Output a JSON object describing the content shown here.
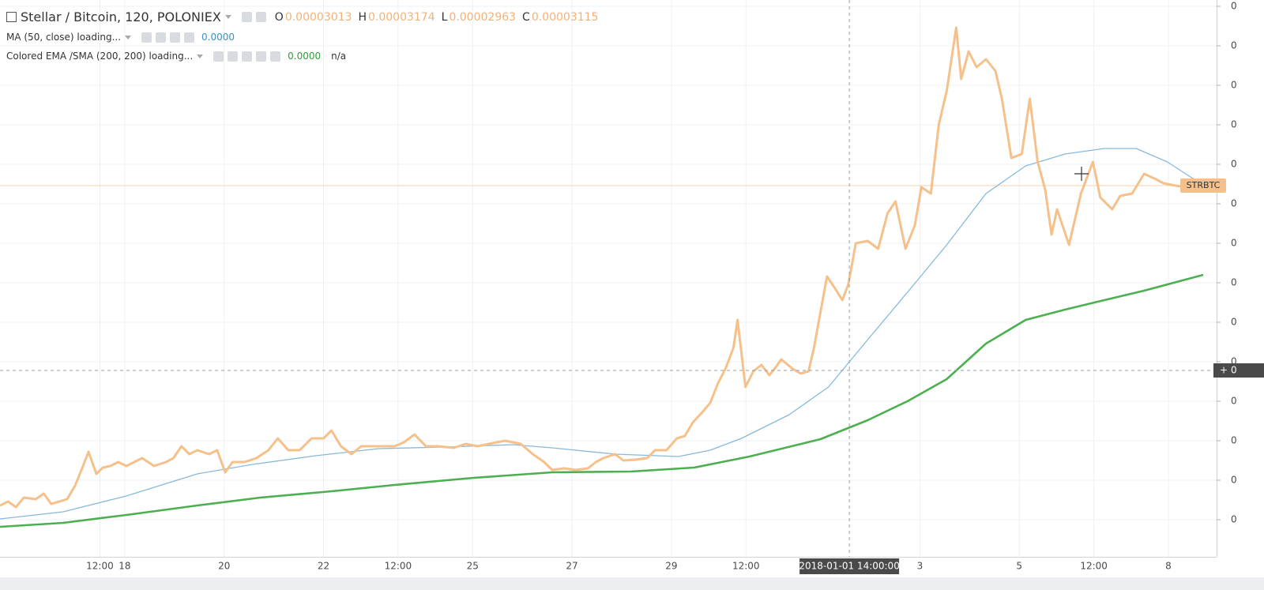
{
  "header": {
    "symbol": "Stellar / Bitcoin, 120, POLONIEX",
    "ohlc": [
      {
        "key": "O",
        "value": "0.00003013"
      },
      {
        "key": "H",
        "value": "0.00003174"
      },
      {
        "key": "L",
        "value": "0.00002963"
      },
      {
        "key": "C",
        "value": "0.00003115"
      }
    ]
  },
  "indicators": [
    {
      "label": "MA (50, close) loading...",
      "value": "0.0000"
    },
    {
      "label": "Colored EMA /SMA (200, 200) loading...",
      "value": "0.0000",
      "extra": "n/a"
    }
  ],
  "chart_data": {
    "type": "line",
    "xlim": [
      15.49,
      39.97
    ],
    "xticks": [
      {
        "value": 17.5,
        "label": "12:00"
      },
      18,
      20,
      22,
      {
        "value": 23.5,
        "label": "12:00"
      },
      25,
      27,
      29,
      {
        "value": 30.5,
        "label": "12:00"
      },
      {
        "value": 34,
        "label": "3"
      },
      {
        "value": 36,
        "label": "5"
      },
      {
        "value": 37.5,
        "label": "12:00"
      },
      {
        "value": 39,
        "label": "8"
      }
    ],
    "ylim": [
      7.65e-06,
      4.29e-05
    ],
    "yticks": [
      {
        "value": 1e-05,
        "label": "0"
      },
      {
        "value": 1.25e-05,
        "label": "0"
      },
      {
        "value": 1.5e-05,
        "label": "0"
      },
      {
        "value": 1.75e-05,
        "label": "0"
      },
      {
        "value": 2e-05,
        "label": "0"
      },
      {
        "value": 2.25e-05,
        "label": "0"
      },
      {
        "value": 2.5e-05,
        "label": "0"
      },
      {
        "value": 2.75e-05,
        "label": "0"
      },
      {
        "value": 3e-05,
        "label": "0"
      },
      {
        "value": 3.25e-05,
        "label": "0"
      },
      {
        "value": 3.5e-05,
        "label": "0"
      },
      {
        "value": 3.75e-05,
        "label": "0"
      },
      {
        "value": 4e-05,
        "label": "0"
      },
      {
        "value": 4.25e-05,
        "label": "0"
      }
    ],
    "grid": true,
    "crosshair": {
      "x": 32.58,
      "x_label": "2018-01-01 14:00:00",
      "y": 1.945e-05,
      "y_label": "0"
    },
    "series": [
      {
        "name": "STRBTC",
        "color": "#f5c08a",
        "width": 3,
        "x": [
          15.49,
          15.65,
          15.81,
          15.97,
          16.21,
          16.37,
          16.52,
          16.68,
          16.84,
          17.0,
          17.16,
          17.27,
          17.43,
          17.56,
          17.71,
          17.87,
          18.03,
          18.19,
          18.35,
          18.59,
          18.83,
          18.98,
          19.14,
          19.3,
          19.46,
          19.7,
          19.86,
          20.02,
          20.17,
          20.41,
          20.65,
          20.89,
          21.08,
          21.29,
          21.52,
          21.76,
          22.0,
          22.16,
          22.35,
          22.56,
          22.76,
          22.95,
          23.19,
          23.43,
          23.62,
          23.83,
          24.06,
          24.3,
          24.62,
          24.86,
          25.1,
          25.33,
          25.65,
          25.97,
          26.21,
          26.44,
          26.6,
          26.84,
          27.08,
          27.32,
          27.48,
          27.63,
          27.87,
          28.03,
          28.27,
          28.51,
          28.67,
          28.9,
          29.11,
          29.27,
          29.43,
          29.62,
          29.78,
          29.94,
          30.1,
          30.25,
          30.33,
          30.49,
          30.65,
          30.81,
          30.97,
          31.1,
          31.21,
          31.44,
          31.6,
          31.76,
          31.87,
          32.0,
          32.13,
          32.29,
          32.44,
          32.56,
          32.71,
          32.95,
          33.16,
          33.35,
          33.51,
          33.71,
          33.9,
          34.03,
          34.22,
          34.38,
          34.54,
          34.73,
          34.83,
          34.98,
          35.14,
          35.33,
          35.52,
          35.65,
          35.84,
          36.05,
          36.21,
          36.37,
          36.52,
          36.65,
          36.76,
          37.0,
          37.24,
          37.48,
          37.63,
          37.87,
          38.03,
          38.27,
          38.51,
          38.75,
          38.9,
          39.14,
          39.38,
          39.54
        ],
        "values": [
          1.09e-05,
          1.115e-05,
          1.08e-05,
          1.14e-05,
          1.13e-05,
          1.165e-05,
          1.1e-05,
          1.115e-05,
          1.13e-05,
          1.215e-05,
          1.34e-05,
          1.43e-05,
          1.29e-05,
          1.33e-05,
          1.34e-05,
          1.365e-05,
          1.34e-05,
          1.365e-05,
          1.39e-05,
          1.34e-05,
          1.365e-05,
          1.39e-05,
          1.465e-05,
          1.415e-05,
          1.44e-05,
          1.415e-05,
          1.44e-05,
          1.3e-05,
          1.365e-05,
          1.365e-05,
          1.39e-05,
          1.44e-05,
          1.515e-05,
          1.44e-05,
          1.44e-05,
          1.515e-05,
          1.515e-05,
          1.565e-05,
          1.465e-05,
          1.415e-05,
          1.465e-05,
          1.465e-05,
          1.465e-05,
          1.465e-05,
          1.49e-05,
          1.54e-05,
          1.465e-05,
          1.465e-05,
          1.455e-05,
          1.48e-05,
          1.465e-05,
          1.48e-05,
          1.5e-05,
          1.48e-05,
          1.415e-05,
          1.365e-05,
          1.315e-05,
          1.325e-05,
          1.315e-05,
          1.325e-05,
          1.365e-05,
          1.39e-05,
          1.415e-05,
          1.375e-05,
          1.38e-05,
          1.39e-05,
          1.44e-05,
          1.44e-05,
          1.515e-05,
          1.53e-05,
          1.615e-05,
          1.68e-05,
          1.74e-05,
          1.865e-05,
          1.965e-05,
          2.09e-05,
          2.265e-05,
          1.84e-05,
          1.94e-05,
          1.98e-05,
          1.915e-05,
          1.965e-05,
          2.015e-05,
          1.955e-05,
          1.925e-05,
          1.94e-05,
          2.09e-05,
          2.315e-05,
          2.54e-05,
          2.465e-05,
          2.39e-05,
          2.49e-05,
          2.75e-05,
          2.765e-05,
          2.715e-05,
          2.94e-05,
          3.015e-05,
          2.715e-05,
          2.865e-05,
          3.105e-05,
          3.065e-05,
          3.5e-05,
          3.715e-05,
          4.115e-05,
          3.79e-05,
          3.965e-05,
          3.865e-05,
          3.915e-05,
          3.84e-05,
          3.665e-05,
          3.29e-05,
          3.315e-05,
          3.665e-05,
          3.265e-05,
          3.09e-05,
          2.805e-05,
          2.965e-05,
          2.74e-05,
          3.065e-05,
          3.265e-05,
          3.04e-05,
          2.965e-05,
          3.05e-05,
          3.065e-05,
          3.19e-05,
          3.155e-05,
          3.13e-05,
          3.115e-05,
          3.105e-05,
          3.115e-05
        ]
      },
      {
        "name": "MA (50, close) loading...",
        "color": "#86b9dc",
        "width": 1.3,
        "x": [
          15.49,
          16.76,
          18.03,
          19.46,
          20.57,
          21.84,
          23.11,
          24.44,
          25.81,
          26.6,
          27.87,
          29.14,
          29.78,
          30.41,
          31.37,
          32.16,
          32.95,
          33.75,
          34.54,
          35.33,
          36.13,
          36.92,
          37.71,
          38.35,
          38.98,
          39.54
        ],
        "values": [
          1.005e-05,
          1.05e-05,
          1.15e-05,
          1.29e-05,
          1.35e-05,
          1.405e-05,
          1.45e-05,
          1.46e-05,
          1.475e-05,
          1.455e-05,
          1.415e-05,
          1.4e-05,
          1.44e-05,
          1.515e-05,
          1.665e-05,
          1.84e-05,
          2.14e-05,
          2.44e-05,
          2.74e-05,
          3.065e-05,
          3.24e-05,
          3.315e-05,
          3.35e-05,
          3.35e-05,
          3.265e-05,
          3.15e-05
        ]
      },
      {
        "name": "Colored EMA /SMA (200, 200) loading...",
        "color": "#4caf50",
        "width": 2.6,
        "x": [
          15.49,
          16.76,
          18.03,
          19.46,
          20.73,
          22.16,
          23.43,
          25.02,
          26.6,
          28.19,
          29.46,
          30.57,
          32.0,
          32.95,
          33.75,
          34.54,
          35.33,
          36.13,
          36.92,
          37.71,
          38.51,
          39.7
        ],
        "values": [
          9.55e-06,
          9.8e-06,
          1.03e-05,
          1.09e-05,
          1.14e-05,
          1.18e-05,
          1.22e-05,
          1.265e-05,
          1.3e-05,
          1.305e-05,
          1.33e-05,
          1.4e-05,
          1.51e-05,
          1.63e-05,
          1.75e-05,
          1.89e-05,
          2.115e-05,
          2.265e-05,
          2.33e-05,
          2.39e-05,
          2.45e-05,
          2.55e-05
        ]
      }
    ]
  }
}
